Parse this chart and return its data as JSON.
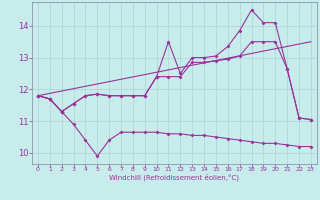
{
  "xlabel": "Windchill (Refroidissement éolien,°C)",
  "background_color": "#c8ecec",
  "grid_color": "#b0d8d8",
  "line_color": "#993399",
  "x_ticks": [
    0,
    1,
    2,
    3,
    4,
    5,
    6,
    7,
    8,
    9,
    10,
    11,
    12,
    13,
    14,
    15,
    16,
    17,
    18,
    19,
    20,
    21,
    22,
    23
  ],
  "y_ticks": [
    10,
    11,
    12,
    13,
    14
  ],
  "xlim": [
    -0.5,
    23.5
  ],
  "ylim": [
    9.65,
    14.75
  ],
  "series1_x": [
    0,
    1,
    2,
    3,
    4,
    5,
    6,
    7,
    8,
    9,
    10,
    11,
    12,
    13,
    14,
    15,
    16,
    17,
    18,
    19,
    20,
    21,
    22,
    23
  ],
  "series1_y": [
    11.8,
    11.7,
    11.3,
    10.9,
    10.4,
    9.9,
    10.4,
    10.65,
    10.65,
    10.65,
    10.65,
    10.6,
    10.6,
    10.55,
    10.55,
    10.5,
    10.45,
    10.4,
    10.35,
    10.3,
    10.3,
    10.25,
    10.2,
    10.2
  ],
  "series2_x": [
    0,
    1,
    2,
    3,
    4,
    5,
    6,
    7,
    8,
    9,
    10,
    11,
    12,
    13,
    14,
    15,
    16,
    17,
    18,
    19,
    20,
    21,
    22,
    23
  ],
  "series2_y": [
    11.8,
    11.7,
    11.3,
    11.55,
    11.8,
    11.85,
    11.8,
    11.8,
    11.8,
    11.8,
    12.4,
    12.4,
    12.4,
    12.85,
    12.85,
    12.9,
    12.95,
    13.05,
    13.5,
    13.5,
    13.5,
    12.65,
    11.1,
    11.05
  ],
  "series3_x": [
    0,
    1,
    2,
    3,
    4,
    5,
    6,
    7,
    8,
    9,
    10,
    11,
    12,
    13,
    14,
    15,
    16,
    17,
    18,
    19,
    20,
    21,
    22,
    23
  ],
  "series3_y": [
    11.8,
    11.7,
    11.3,
    11.55,
    11.8,
    11.85,
    11.8,
    11.8,
    11.8,
    11.8,
    12.4,
    13.5,
    12.5,
    13.0,
    13.0,
    13.05,
    13.35,
    13.85,
    14.5,
    14.1,
    14.1,
    12.65,
    11.1,
    11.05
  ],
  "series4_x": [
    0,
    23
  ],
  "series4_y": [
    11.8,
    13.5
  ]
}
